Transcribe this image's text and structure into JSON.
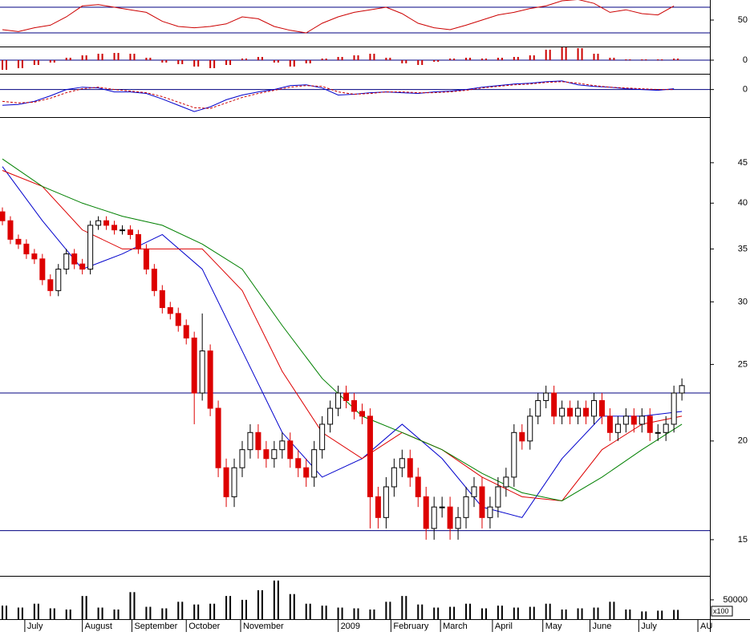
{
  "chart_data": [
    {
      "type": "line",
      "xlim": [
        0,
        88.5
      ],
      "ylim": [
        8.75,
        81.25
      ],
      "yticks": [
        50
      ],
      "reference_lines": [
        70,
        30
      ],
      "reference_color": "#000080",
      "x": [
        0,
        2,
        4,
        6,
        8,
        10,
        12,
        14,
        16,
        18,
        20,
        22,
        24,
        26,
        28,
        30,
        32,
        34,
        36,
        38,
        40,
        42,
        44,
        46,
        48,
        50,
        52,
        54,
        56,
        58,
        60,
        62,
        64,
        66,
        68,
        70,
        72,
        74,
        76,
        78,
        80,
        82,
        84
      ],
      "series": [
        {
          "color": "#cc0000",
          "values": [
            35,
            32,
            38,
            42,
            55,
            72,
            74,
            70,
            66,
            62,
            48,
            40,
            38,
            40,
            44,
            55,
            52,
            40,
            34,
            30,
            45,
            55,
            62,
            66,
            70,
            60,
            45,
            38,
            35,
            42,
            50,
            58,
            62,
            68,
            72,
            80,
            82,
            76,
            62,
            66,
            60,
            58,
            72
          ]
        }
      ]
    },
    {
      "type": "bar",
      "xlim": [
        0,
        88.5
      ],
      "ylim": [
        -1.7,
        1.7
      ],
      "yticks": [
        0
      ],
      "reference_lines": [
        0
      ],
      "reference_color": "#000080",
      "color": "#cc0000",
      "x": [
        0,
        2,
        4,
        6,
        8,
        10,
        12,
        14,
        16,
        18,
        20,
        22,
        24,
        26,
        28,
        30,
        32,
        34,
        36,
        38,
        40,
        42,
        44,
        46,
        48,
        50,
        52,
        54,
        56,
        58,
        60,
        62,
        64,
        66,
        68,
        70,
        72,
        74,
        76,
        78,
        80,
        82,
        84
      ],
      "values": [
        -1.2,
        -1.0,
        -0.6,
        -0.3,
        0.3,
        0.6,
        0.8,
        0.9,
        0.8,
        0.3,
        -0.3,
        -0.5,
        -0.8,
        -1.0,
        -0.6,
        0.2,
        0.4,
        -0.3,
        -0.8,
        -0.4,
        0.2,
        0.4,
        0.6,
        0.8,
        0.3,
        -0.4,
        -0.6,
        -0.2,
        0.2,
        0.3,
        0.2,
        0.3,
        0.4,
        0.6,
        1.3,
        1.6,
        1.5,
        0.8,
        0.3,
        0.1,
        0.1,
        0.1,
        0.2
      ]
    },
    {
      "type": "line",
      "xlim": [
        0,
        88.5
      ],
      "ylim": [
        -3.5,
        2
      ],
      "yticks": [
        0
      ],
      "reference_lines": [
        0
      ],
      "reference_color": "#000080",
      "x": [
        0,
        2,
        4,
        6,
        8,
        10,
        12,
        14,
        16,
        18,
        20,
        22,
        24,
        26,
        28,
        30,
        32,
        34,
        36,
        38,
        40,
        42,
        44,
        46,
        48,
        50,
        52,
        54,
        56,
        58,
        60,
        62,
        64,
        66,
        68,
        70,
        72,
        74,
        76,
        78,
        80,
        82,
        84
      ],
      "series": [
        {
          "color": "#0000cc",
          "values": [
            -2,
            -1.9,
            -1.5,
            -0.8,
            0,
            0.3,
            0.2,
            -0.3,
            -0.3,
            -0.5,
            -1.2,
            -2.0,
            -2.8,
            -2.2,
            -1.3,
            -0.7,
            -0.3,
            0,
            0.5,
            0.6,
            0.2,
            -0.7,
            -0.6,
            -0.4,
            -0.3,
            -0.4,
            -0.5,
            -0.3,
            -0.2,
            0,
            0.3,
            0.5,
            0.7,
            0.8,
            1.0,
            1.1,
            0.6,
            0.4,
            0.3,
            0.1,
            0,
            -0.1,
            0.1
          ]
        },
        {
          "color": "#cc0000",
          "dashed": true,
          "values": [
            -1.5,
            -1.7,
            -1.6,
            -1.1,
            -0.4,
            0.1,
            0.3,
            0,
            -0.2,
            -0.4,
            -0.9,
            -1.6,
            -2.3,
            -2.4,
            -1.7,
            -1.0,
            -0.5,
            -0.1,
            0.3,
            0.5,
            0.4,
            -0.3,
            -0.6,
            -0.5,
            -0.3,
            -0.3,
            -0.4,
            -0.4,
            -0.3,
            -0.1,
            0.2,
            0.4,
            0.6,
            0.7,
            0.9,
            1.0,
            0.8,
            0.5,
            0.3,
            0.2,
            0.1,
            0,
            0
          ]
        }
      ]
    },
    {
      "type": "candlestick",
      "xlim": [
        0,
        88.5
      ],
      "ylim": [
        13.5,
        51.4
      ],
      "log_scale": true,
      "yticks": [
        15,
        20,
        25,
        30,
        35,
        40,
        45
      ],
      "reference_lines": [
        23,
        15.4
      ],
      "reference_color": "#000080",
      "up_color": "#000000",
      "down_color": "#dd0000",
      "open": [
        39,
        38,
        36,
        35.5,
        34.5,
        34,
        32,
        31,
        33,
        34.5,
        33.5,
        33,
        37.5,
        38,
        37.5,
        37,
        37,
        36.5,
        35,
        33,
        31,
        29.5,
        29,
        28,
        27,
        23,
        26,
        22,
        18.5,
        17,
        18.5,
        19.5,
        20.5,
        19.5,
        19,
        19.5,
        20,
        19,
        18.5,
        18,
        19.5,
        21,
        22,
        23,
        22.5,
        21.8,
        21.5,
        17,
        16,
        17.5,
        18.5,
        19,
        18,
        17,
        15.5,
        16.5,
        16.5,
        15.5,
        16,
        17,
        17.5,
        16,
        16.5,
        17.5,
        18,
        20.5,
        20,
        21.5,
        22.5,
        23,
        21.5,
        22,
        21.5,
        22,
        21.5,
        22.5,
        21.5,
        20.5,
        21,
        21.5,
        21,
        21.5,
        20.5,
        20.5,
        21,
        23
      ],
      "high": [
        39.5,
        38.5,
        36.5,
        36,
        35,
        34.5,
        32.5,
        33.5,
        35,
        35,
        34,
        38,
        38.5,
        38.5,
        38,
        37.5,
        37.5,
        37,
        35.5,
        33.5,
        31.5,
        30,
        29.5,
        28.5,
        27.5,
        29,
        26.5,
        22.5,
        19,
        19,
        20,
        21,
        21,
        20,
        20,
        20.5,
        20.5,
        19.5,
        19,
        20,
        21.5,
        22.5,
        23.5,
        23.5,
        23,
        22.3,
        22,
        17.5,
        18,
        19,
        19.5,
        19.5,
        18.5,
        17.5,
        17,
        17,
        17,
        16.5,
        17.5,
        18,
        18,
        17,
        18,
        18.5,
        21,
        21,
        22,
        23,
        23.5,
        23.5,
        22.5,
        22.5,
        22.5,
        22.5,
        23,
        23,
        22,
        21.5,
        22,
        22,
        22,
        22,
        21,
        21.5,
        23.5,
        24
      ],
      "low": [
        37.5,
        35.5,
        35,
        34,
        33.5,
        31.5,
        30.5,
        30.5,
        32.5,
        33,
        32.5,
        32.5,
        37,
        37,
        36.5,
        36.5,
        36,
        34.5,
        32.5,
        30.5,
        29,
        28.5,
        27.5,
        26.5,
        21,
        22.5,
        21.5,
        18,
        16.5,
        16.5,
        18,
        19,
        19,
        18.5,
        18.5,
        19,
        18.5,
        18,
        17.5,
        17.5,
        19,
        20.5,
        21.5,
        22,
        21.3,
        21,
        15.5,
        15.5,
        15.5,
        17,
        18,
        17.5,
        16.5,
        15,
        15,
        16,
        15,
        15,
        15.5,
        16.5,
        15.5,
        15.5,
        16,
        17,
        17.5,
        19.5,
        19.5,
        21,
        22,
        21,
        21,
        21,
        21,
        21,
        21,
        21,
        20,
        20,
        20.5,
        20.5,
        20.5,
        20,
        20,
        20,
        20.5,
        22.5
      ],
      "close": [
        38,
        36,
        35.5,
        34.5,
        34,
        32,
        31,
        33,
        34.5,
        33.5,
        33,
        37.5,
        38,
        37.5,
        37,
        37,
        36.5,
        35,
        33,
        31,
        29.5,
        29,
        28,
        27,
        23,
        26,
        22,
        18.5,
        17,
        18.5,
        19.5,
        20.5,
        19.5,
        19,
        19.5,
        20,
        19,
        18.5,
        18,
        19.5,
        21,
        22,
        23,
        22.5,
        21.8,
        21.5,
        17,
        16,
        17.5,
        18.5,
        19,
        18,
        17,
        15.5,
        16.5,
        16.5,
        15.5,
        16,
        17,
        17.5,
        16,
        16.5,
        17.5,
        18,
        20.5,
        20,
        21.5,
        22.5,
        23,
        21.5,
        22,
        21.5,
        22,
        21.5,
        22.5,
        21.5,
        20.5,
        21,
        21.5,
        21,
        21.5,
        20.5,
        20.5,
        21,
        23,
        23.5
      ],
      "ma_x": [
        0,
        5,
        10,
        15,
        20,
        25,
        30,
        35,
        40,
        45,
        50,
        55,
        60,
        65,
        70,
        75,
        80,
        85
      ],
      "series": [
        {
          "color": "#0000cc",
          "values": [
            44.5,
            38,
            33,
            34.5,
            36.5,
            33,
            26,
            20.5,
            18,
            19,
            21,
            19,
            16.5,
            16,
            19,
            21.5,
            21.5,
            21.8
          ]
        },
        {
          "color": "#dd0000",
          "values": [
            44,
            42,
            37,
            35,
            35,
            35,
            31,
            24.5,
            20.5,
            19,
            20.5,
            19.5,
            18,
            17,
            16.8,
            19.5,
            21,
            21.5
          ]
        },
        {
          "color": "#008000",
          "values": [
            45.5,
            42,
            40,
            38.5,
            37.5,
            35.5,
            33,
            28,
            24,
            21.5,
            20.5,
            19.5,
            18.2,
            17.2,
            16.8,
            18,
            19.5,
            21
          ]
        }
      ]
    },
    {
      "type": "bar",
      "xlim": [
        0,
        88.5
      ],
      "ylim": [
        0,
        108000
      ],
      "yticks": [
        50000
      ],
      "unit_label": "x100",
      "color": "#000000",
      "x": [
        0,
        2,
        4,
        6,
        8,
        10,
        12,
        14,
        16,
        18,
        20,
        22,
        24,
        26,
        28,
        30,
        32,
        34,
        36,
        38,
        40,
        42,
        44,
        46,
        48,
        50,
        52,
        54,
        56,
        58,
        60,
        62,
        64,
        66,
        68,
        70,
        72,
        74,
        76,
        78,
        80,
        82,
        84
      ],
      "values": [
        35000,
        30000,
        40000,
        28000,
        25000,
        60000,
        30000,
        25000,
        70000,
        32000,
        28000,
        45000,
        38000,
        40000,
        60000,
        50000,
        75000,
        100000,
        65000,
        40000,
        35000,
        30000,
        28000,
        25000,
        45000,
        60000,
        38000,
        30000,
        32000,
        40000,
        28000,
        35000,
        30000,
        32000,
        40000,
        25000,
        28000,
        30000,
        45000,
        25000,
        20000,
        22000,
        24000
      ],
      "xticks": [
        {
          "value": 2.8,
          "label": "July"
        },
        {
          "value": 10,
          "label": "August"
        },
        {
          "value": 16.2,
          "label": "September"
        },
        {
          "value": 23,
          "label": "October"
        },
        {
          "value": 29.8,
          "label": "November"
        },
        {
          "value": 42,
          "label": "2009"
        },
        {
          "value": 48.6,
          "label": "February"
        },
        {
          "value": 54.8,
          "label": "March"
        },
        {
          "value": 61.3,
          "label": "April"
        },
        {
          "value": 67.6,
          "label": "May"
        },
        {
          "value": 73.5,
          "label": "June"
        },
        {
          "value": 79.6,
          "label": "July"
        },
        {
          "value": 87,
          "label": "AU"
        }
      ]
    }
  ]
}
